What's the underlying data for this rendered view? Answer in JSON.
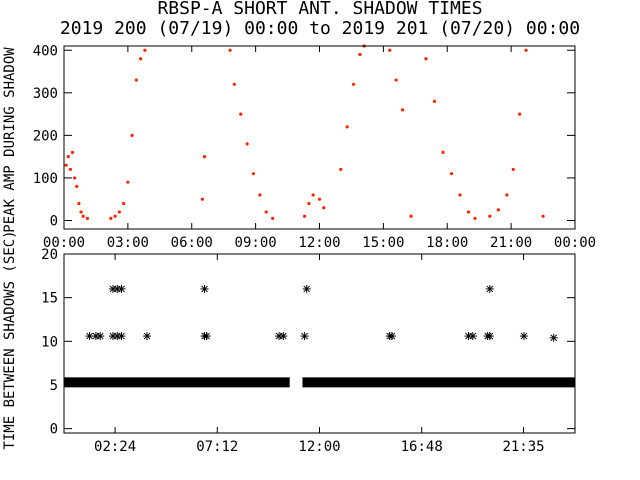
{
  "titles": {
    "line1": "RBSP-A SHORT ANT. SHADOW TIMES",
    "line2": "2019 200 (07/19) 00:00 to 2019 201 (07/20) 00:00"
  },
  "colors": {
    "upper_points": "#ff2200",
    "frame": "#000000",
    "background": "#ffffff"
  },
  "chart_data": [
    {
      "type": "scatter",
      "ylabel": "PEAK AMP DURING SHADOW",
      "xlim": [
        0,
        24
      ],
      "ylim": [
        -20,
        410
      ],
      "x_tick_labels": [
        "00:00",
        "03:00",
        "06:00",
        "09:00",
        "12:00",
        "15:00",
        "18:00",
        "21:00",
        "00:00"
      ],
      "x_tick_values": [
        0,
        3,
        6,
        9,
        12,
        15,
        18,
        21,
        24
      ],
      "y_tick_labels": [
        "0",
        "100",
        "200",
        "300",
        "400"
      ],
      "y_tick_values": [
        0,
        100,
        200,
        300,
        400
      ],
      "series": [
        {
          "points": [
            [
              0.1,
              130
            ],
            [
              0.2,
              150
            ],
            [
              0.3,
              120
            ],
            [
              0.4,
              160
            ],
            [
              0.5,
              100
            ],
            [
              0.6,
              80
            ],
            [
              0.7,
              40
            ],
            [
              0.8,
              20
            ],
            [
              0.9,
              10
            ],
            [
              1.1,
              5
            ],
            [
              2.2,
              5
            ],
            [
              2.4,
              10
            ],
            [
              2.6,
              20
            ],
            [
              2.8,
              40
            ],
            [
              3.0,
              90
            ],
            [
              3.2,
              200
            ],
            [
              3.4,
              330
            ],
            [
              3.6,
              380
            ],
            [
              3.8,
              400
            ],
            [
              6.5,
              50
            ],
            [
              6.6,
              150
            ],
            [
              7.8,
              400
            ],
            [
              8.0,
              320
            ],
            [
              8.3,
              250
            ],
            [
              8.6,
              180
            ],
            [
              8.9,
              110
            ],
            [
              9.2,
              60
            ],
            [
              9.5,
              20
            ],
            [
              9.8,
              5
            ],
            [
              11.3,
              10
            ],
            [
              11.5,
              40
            ],
            [
              11.7,
              60
            ],
            [
              12.0,
              50
            ],
            [
              12.2,
              30
            ],
            [
              13.0,
              120
            ],
            [
              13.3,
              220
            ],
            [
              13.6,
              320
            ],
            [
              13.9,
              390
            ],
            [
              14.1,
              410
            ],
            [
              15.3,
              400
            ],
            [
              15.6,
              330
            ],
            [
              15.9,
              260
            ],
            [
              16.3,
              10
            ],
            [
              17.0,
              380
            ],
            [
              17.4,
              280
            ],
            [
              17.8,
              160
            ],
            [
              18.2,
              110
            ],
            [
              18.6,
              60
            ],
            [
              19.0,
              20
            ],
            [
              19.3,
              5
            ],
            [
              20.0,
              10
            ],
            [
              20.4,
              25
            ],
            [
              20.8,
              60
            ],
            [
              21.1,
              120
            ],
            [
              21.4,
              250
            ],
            [
              21.7,
              400
            ],
            [
              22.5,
              10
            ]
          ]
        }
      ]
    },
    {
      "type": "scatter",
      "ylabel": "TIME BETWEEN SHADOWS (SEC)",
      "xlim": [
        0,
        24
      ],
      "ylim": [
        -0.5,
        20
      ],
      "x_tick_labels": [
        "02:24",
        "07:12",
        "12:00",
        "16:48",
        "21:35"
      ],
      "x_tick_values": [
        2.4,
        7.2,
        12.0,
        16.8,
        21.583
      ],
      "y_tick_labels": [
        "0",
        "5",
        "10",
        "15",
        "20"
      ],
      "y_tick_values": [
        0,
        5,
        10,
        15,
        20
      ],
      "baseline": {
        "y": 5.3,
        "segments": [
          [
            0,
            10.6
          ],
          [
            11.2,
            24
          ]
        ]
      },
      "series": [
        {
          "points": [
            [
              1.2,
              10.6
            ],
            [
              1.5,
              10.6
            ],
            [
              1.7,
              10.6
            ],
            [
              2.3,
              10.6
            ],
            [
              2.5,
              10.6
            ],
            [
              2.7,
              10.6
            ],
            [
              3.9,
              10.6
            ],
            [
              6.6,
              10.6
            ],
            [
              6.7,
              10.6
            ],
            [
              10.1,
              10.6
            ],
            [
              10.3,
              10.6
            ],
            [
              11.3,
              10.6
            ],
            [
              15.3,
              10.6
            ],
            [
              15.4,
              10.6
            ],
            [
              19.0,
              10.6
            ],
            [
              19.2,
              10.6
            ],
            [
              19.9,
              10.6
            ],
            [
              20.0,
              10.6
            ],
            [
              21.6,
              10.6
            ],
            [
              23.0,
              10.4
            ],
            [
              2.3,
              16
            ],
            [
              2.5,
              16
            ],
            [
              2.7,
              16
            ],
            [
              6.6,
              16
            ],
            [
              11.4,
              16
            ],
            [
              20.0,
              16
            ]
          ]
        }
      ]
    }
  ]
}
